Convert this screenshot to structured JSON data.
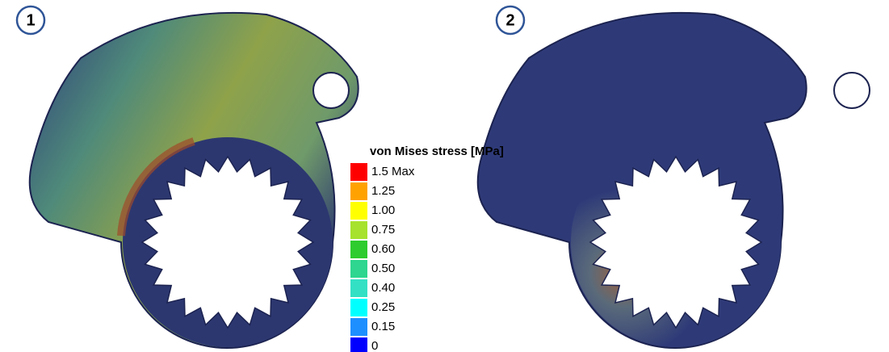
{
  "panels": [
    {
      "label": "1"
    },
    {
      "label": "2"
    }
  ],
  "legend": {
    "title": "von Mises stress [MPa]",
    "entries": [
      {
        "label": "1.5 Max",
        "color": "#ff0000"
      },
      {
        "label": "1.25",
        "color": "#ffa200"
      },
      {
        "label": "1.00",
        "color": "#ffff00"
      },
      {
        "label": "0.75",
        "color": "#a6e22e"
      },
      {
        "label": "0.60",
        "color": "#2ecc2e"
      },
      {
        "label": "0.50",
        "color": "#2ed68f"
      },
      {
        "label": "0.40",
        "color": "#33e0c4"
      },
      {
        "label": "0.25",
        "color": "#00ffff"
      },
      {
        "label": "0.15",
        "color": "#1e8fff"
      },
      {
        "label": "0",
        "color": "#0000ff"
      }
    ]
  }
}
